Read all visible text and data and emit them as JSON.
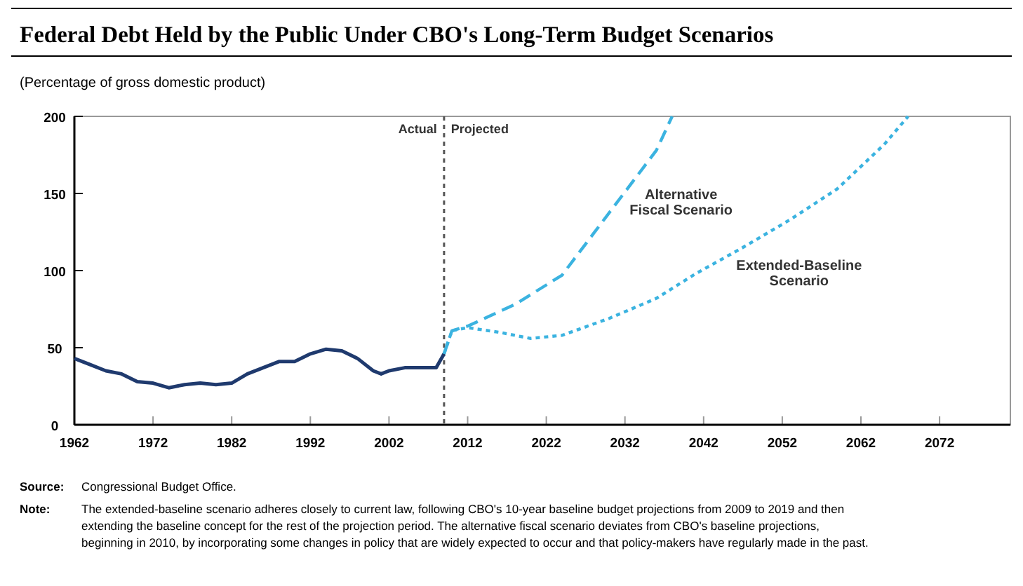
{
  "chart_data": {
    "type": "line",
    "title": "Federal Debt Held by the Public Under CBO's Long-Term Budget Scenarios",
    "subtitle": "(Percentage of gross domestic product)",
    "xlim": [
      1962,
      2081
    ],
    "xticks": [
      1962,
      1972,
      1982,
      1992,
      2002,
      2012,
      2022,
      2032,
      2042,
      2052,
      2062,
      2072
    ],
    "ylim": [
      0,
      200
    ],
    "yticks": [
      0,
      50,
      100,
      150,
      200
    ],
    "grid": false,
    "series": [
      {
        "color": "#1f3a6e",
        "line_style": "solid",
        "x": [
          1962,
          1964,
          1966,
          1968,
          1970,
          1972,
          1974,
          1976,
          1978,
          1980,
          1982,
          1984,
          1986,
          1988,
          1990,
          1992,
          1994,
          1996,
          1998,
          2000,
          2001,
          2002,
          2004,
          2006,
          2008,
          2009
        ],
        "values": [
          43,
          39,
          35,
          33,
          28,
          27,
          24,
          26,
          27,
          26,
          27,
          33,
          37,
          41,
          41,
          46,
          49,
          48,
          43,
          35,
          33,
          35,
          37,
          37,
          37,
          46
        ]
      },
      {
        "name": "Alternative Fiscal Scenario",
        "color": "#3bb3e0",
        "line_style": "dashed",
        "x": [
          2009,
          2010,
          2012,
          2018,
          2024,
          2028,
          2032,
          2036,
          2038
        ],
        "values": [
          46,
          61,
          64,
          78,
          97,
          124,
          151,
          178,
          200
        ]
      },
      {
        "name": "Extended-Baseline Scenario",
        "color": "#3bb3e0",
        "line_style": "dotted",
        "x": [
          2009,
          2010,
          2012,
          2016,
          2020,
          2024,
          2030,
          2036,
          2041,
          2047,
          2053,
          2059,
          2065,
          2068
        ],
        "values": [
          46,
          61,
          63,
          60,
          56,
          58,
          69,
          82,
          98,
          115,
          133,
          153,
          182,
          200
        ]
      }
    ],
    "ref_lines": [
      {
        "axis": "x",
        "value": 2009,
        "color": "#555555",
        "line_style": "dotted"
      }
    ],
    "annotations": [
      "Actual",
      "Projected",
      "Source: Congressional Budget Office.",
      "Note: The extended-baseline scenario adheres closely to current law, following CBO's 10-year baseline budget projections from 2009 to 2019 and then extending the baseline concept for the rest of the projection period. The alternative fiscal scenario deviates from CBO's baseline projections, beginning in 2010, by incorporating some changes in policy that are widely expected to occur and that policy-makers have regularly made in the past."
    ]
  }
}
